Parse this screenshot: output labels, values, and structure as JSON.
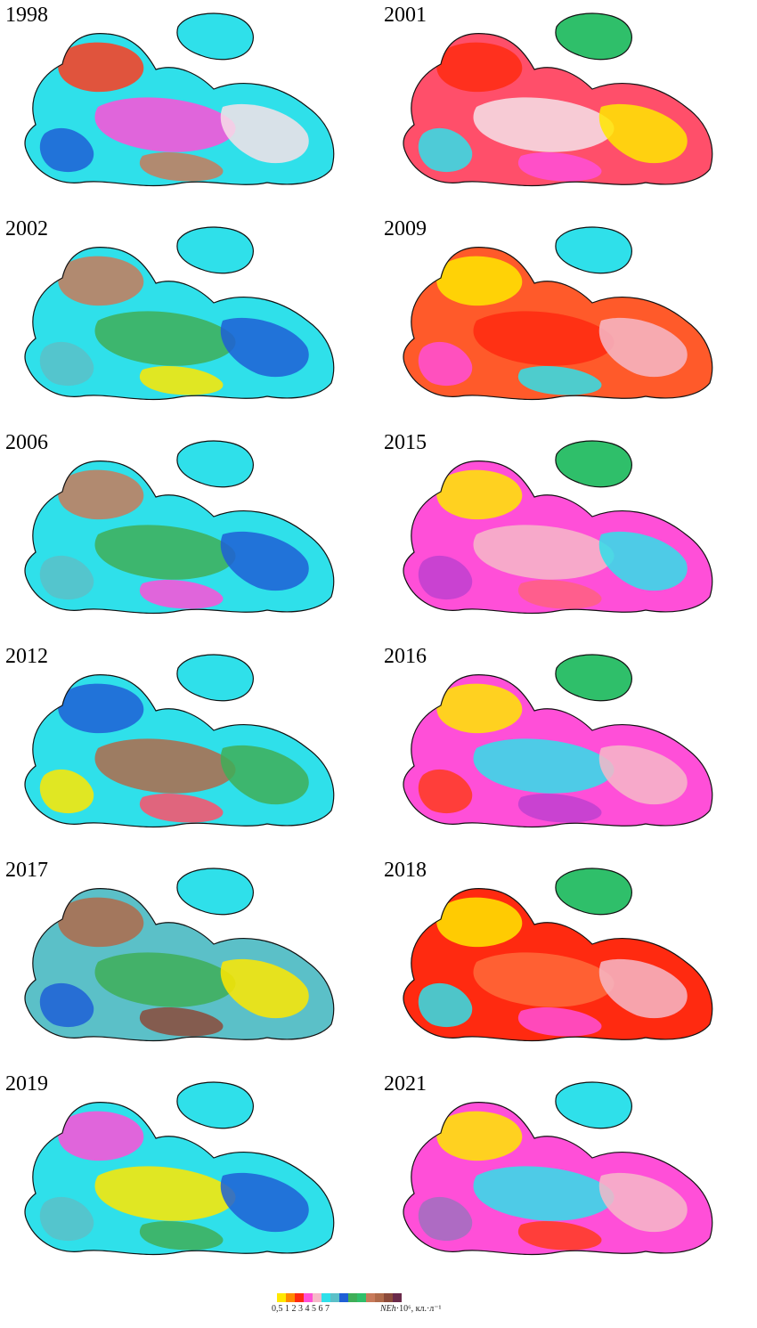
{
  "panels": [
    {
      "year": "1998",
      "sea": "#2fe0ea",
      "azov": "#2fe0ea",
      "patches": [
        "#ff3b1f",
        "#ff4fd8",
        "#f6e0e8",
        "#1f5fd6",
        "#c87a5a"
      ]
    },
    {
      "year": "2001",
      "sea": "#ff4f6a",
      "azov": "#2fbf6a",
      "patches": [
        "#ff2a10",
        "#f6e0e8",
        "#ffe800",
        "#2fe0ea",
        "#ff4fd8"
      ]
    },
    {
      "year": "2002",
      "sea": "#2fe0ea",
      "azov": "#2fe0ea",
      "patches": [
        "#c87a5a",
        "#3fae58",
        "#1f5fd6",
        "#5bc0c8",
        "#ffe800"
      ]
    },
    {
      "year": "2009",
      "sea": "#ff5a2a",
      "azov": "#2fe0ea",
      "patches": [
        "#ffe800",
        "#ff2a10",
        "#f6b8c8",
        "#ff4fd8",
        "#2fe0ea"
      ]
    },
    {
      "year": "2006",
      "sea": "#2fe0ea",
      "azov": "#2fe0ea",
      "patches": [
        "#c87a5a",
        "#3fae58",
        "#1f5fd6",
        "#5bc0c8",
        "#ff4fd8"
      ]
    },
    {
      "year": "2015",
      "sea": "#ff4fd8",
      "azov": "#2fbf6a",
      "patches": [
        "#ffe800",
        "#f6b8c8",
        "#2fe0ea",
        "#c040d0",
        "#ff6080"
      ]
    },
    {
      "year": "2012",
      "sea": "#2fe0ea",
      "azov": "#2fe0ea",
      "patches": [
        "#1f5fd6",
        "#b06a4a",
        "#3fae58",
        "#ffe800",
        "#ff4f6a"
      ]
    },
    {
      "year": "2016",
      "sea": "#ff4fd8",
      "azov": "#2fbf6a",
      "patches": [
        "#ffe800",
        "#2fe0ea",
        "#f6b8c8",
        "#ff3b1f",
        "#c040d0"
      ]
    },
    {
      "year": "2017",
      "sea": "#5bc0c8",
      "azov": "#2fe0ea",
      "patches": [
        "#b06a4a",
        "#3fae58",
        "#ffe800",
        "#1f5fd6",
        "#8c4a3a"
      ]
    },
    {
      "year": "2018",
      "sea": "#ff2a10",
      "azov": "#2fbf6a",
      "patches": [
        "#ffe800",
        "#ff6a3a",
        "#f6b8c8",
        "#2fe0ea",
        "#ff4fd8"
      ]
    },
    {
      "year": "2019",
      "sea": "#2fe0ea",
      "azov": "#2fe0ea",
      "patches": [
        "#ff4fd8",
        "#ffe800",
        "#1f5fd6",
        "#5bc0c8",
        "#3fae58"
      ]
    },
    {
      "year": "2021",
      "sea": "#ff4fd8",
      "azov": "#2fe0ea",
      "patches": [
        "#ffe800",
        "#2fe0ea",
        "#f6b8c8",
        "#a070c0",
        "#ff3b1f"
      ]
    }
  ],
  "legend": {
    "colors": [
      "#ffe800",
      "#ff8a00",
      "#ff2a10",
      "#ff4fd8",
      "#f6b8c8",
      "#2fe0ea",
      "#5bc0c8",
      "#1f5fd6",
      "#3fae58",
      "#2fbf6a",
      "#c87a5a",
      "#b06a4a",
      "#8c4a3a",
      "#6a2a4a"
    ],
    "ticks": "0,5 1  2   3  4   5   6   7",
    "units_main": "NEh",
    "units_rest": "·10⁶, кл.·л⁻¹"
  }
}
